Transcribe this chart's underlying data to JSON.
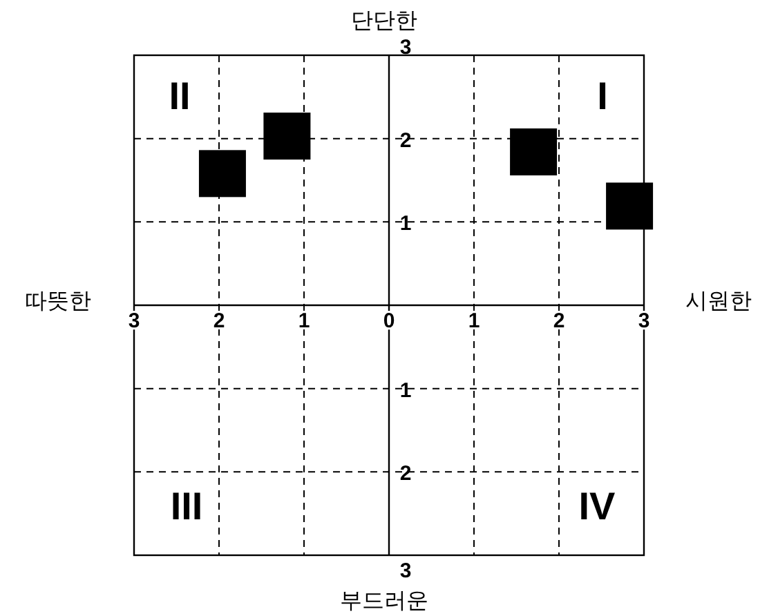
{
  "chart_data": {
    "type": "scatter",
    "marker": "square",
    "grid": true,
    "x": [
      -1.96,
      -1.2,
      1.7,
      2.83
    ],
    "series": [
      {
        "color": "#000000",
        "values": [
          1.58,
          2.03,
          1.84,
          1.19
        ]
      }
    ],
    "xlim": [
      -3,
      3
    ],
    "ylim": [
      -3,
      3
    ],
    "xticks": [
      {
        "value": -3,
        "label": "3"
      },
      {
        "value": -2,
        "label": "2"
      },
      {
        "value": -1,
        "label": "1"
      },
      0,
      1,
      2,
      3
    ],
    "yticks": [
      {
        "value": -3,
        "label": "3"
      },
      {
        "value": -2,
        "label": "2"
      },
      {
        "value": -1,
        "label": "1"
      },
      1,
      2,
      3
    ],
    "annotations": [
      "단단한",
      "부드러운",
      "따뜻한",
      "시원한",
      "I",
      "II",
      "III",
      "IV"
    ]
  }
}
